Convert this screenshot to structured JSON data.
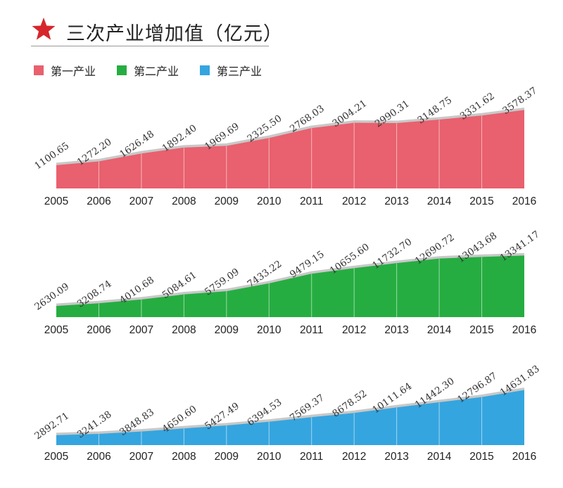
{
  "title": "三次产业增加值（亿元）",
  "icons": {
    "title": "star-icon"
  },
  "colors": {
    "primary": "#e9606e",
    "secondary": "#26ad41",
    "tertiary": "#35a5df",
    "title_star": "#d7262b",
    "top_line": "#c8c8c8"
  },
  "legend": [
    {
      "label": "第一产业",
      "color": "#e9606e"
    },
    {
      "label": "第二产业",
      "color": "#26ad41"
    },
    {
      "label": "第三产业",
      "color": "#35a5df"
    }
  ],
  "chart_data": [
    {
      "type": "area",
      "name": "第一产业",
      "x": [
        "2005",
        "2006",
        "2007",
        "2008",
        "2009",
        "2010",
        "2011",
        "2012",
        "2013",
        "2014",
        "2015",
        "2016"
      ],
      "values": [
        1100.65,
        1272.2,
        1626.48,
        1892.4,
        1969.69,
        2325.5,
        2768.03,
        3004.21,
        2990.31,
        3148.75,
        3331.62,
        3578.37
      ],
      "labels": [
        "1100.65",
        "1272.20",
        "1626.48",
        "1892.40",
        "1969.69",
        "2325.50",
        "2768.03",
        "3004.21",
        "2990.31",
        "3148.75",
        "3331.62",
        "3578.37"
      ],
      "color": "#e9606e",
      "ylim": [
        0,
        4200
      ]
    },
    {
      "type": "area",
      "name": "第二产业",
      "x": [
        "2005",
        "2006",
        "2007",
        "2008",
        "2009",
        "2010",
        "2011",
        "2012",
        "2013",
        "2014",
        "2015",
        "2016"
      ],
      "values": [
        2630.09,
        3208.74,
        4010.68,
        5084.61,
        5759.09,
        7433.22,
        9479.15,
        10655.6,
        11732.7,
        12690.72,
        13043.68,
        13341.17
      ],
      "labels": [
        "2630.09",
        "3208.74",
        "4010.68",
        "5084.61",
        "5759.09",
        "7433.22",
        "9479.15",
        "10655.60",
        "11732.70",
        "12690.72",
        "13043.68",
        "13341.17"
      ],
      "color": "#26ad41",
      "ylim": [
        0,
        18500
      ]
    },
    {
      "type": "area",
      "name": "第三产业",
      "x": [
        "2005",
        "2006",
        "2007",
        "2008",
        "2009",
        "2010",
        "2011",
        "2012",
        "2013",
        "2014",
        "2015",
        "2016"
      ],
      "values": [
        2892.71,
        3241.38,
        3848.83,
        4650.6,
        5427.49,
        6394.53,
        7569.37,
        8678.52,
        10111.64,
        11442.3,
        12796.87,
        14631.83
      ],
      "labels": [
        "2892.71",
        "3241.38",
        "3848.83",
        "4650.60",
        "5427.49",
        "6394.53",
        "7569.37",
        "8678.52",
        "10111.64",
        "11442.30",
        "12796.87",
        "14631.83"
      ],
      "color": "#35a5df",
      "ylim": [
        0,
        23000
      ]
    }
  ]
}
